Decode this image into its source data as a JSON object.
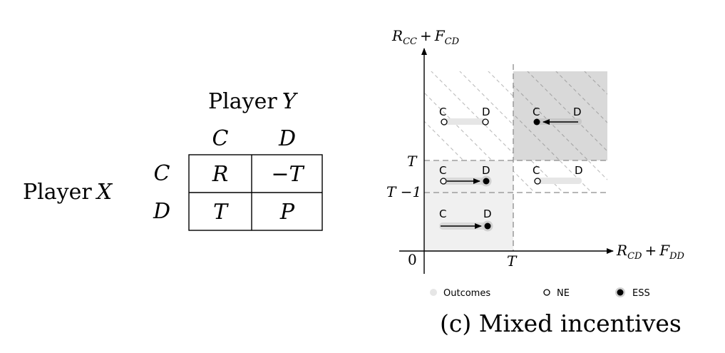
{
  "payoff_matrix": {
    "column_player_label": "Player",
    "column_player_symbol": "Y",
    "row_player_label": "Player",
    "row_player_symbol": "X",
    "column_headers": [
      "C",
      "D"
    ],
    "row_headers": [
      "C",
      "D"
    ],
    "cells": [
      [
        "R",
        "−T"
      ],
      [
        "T",
        "P"
      ]
    ]
  },
  "diagram": {
    "y_axis": {
      "R": "R",
      "R_sub": "CC",
      "plus": "+",
      "F": "F",
      "F_sub": "CD"
    },
    "x_axis": {
      "R": "R",
      "R_sub": "CD",
      "plus": "+",
      "F": "F",
      "F_sub": "DD"
    },
    "origin_label": "0",
    "x_tick": "T",
    "y_tick_upper": "T",
    "y_tick_lower": "T −1",
    "region_strategy_labels": {
      "cooperate": "C",
      "defect": "D"
    },
    "colors": {
      "dark_region": "#d9d9d9",
      "light_region": "#f0f0f0",
      "outcome_bar": "#e6e6e6",
      "hatch_line": "#bdbdbd",
      "axis": "#000000"
    }
  },
  "legend": {
    "outcomes_label": "Outcomes",
    "ne_label": "NE",
    "ess_label": "ESS"
  },
  "caption": "(c) Mixed incentives"
}
